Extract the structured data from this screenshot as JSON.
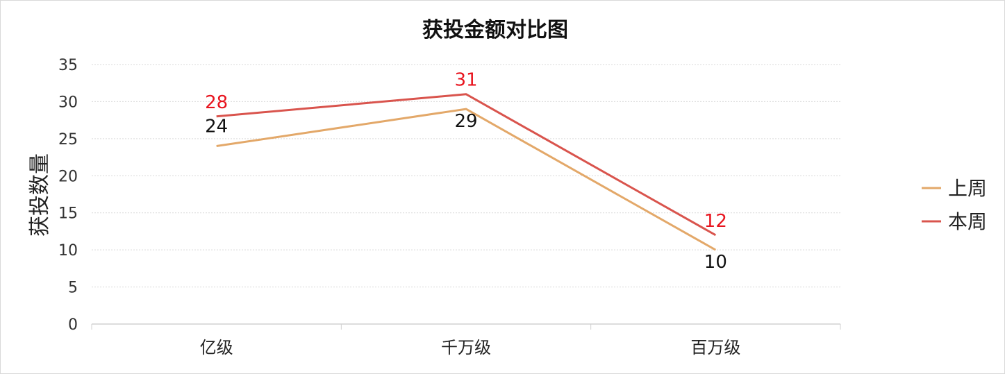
{
  "chart_data": {
    "type": "line",
    "title": "获投金额对比图",
    "xlabel": "",
    "ylabel": "获投数量",
    "categories": [
      "亿级",
      "千万级",
      "百万级"
    ],
    "ylim": [
      0,
      35
    ],
    "yticks": [
      0,
      5,
      10,
      15,
      20,
      25,
      30,
      35
    ],
    "grid": true,
    "legend": "right",
    "series": [
      {
        "name": "上周",
        "values": [
          24,
          29,
          10
        ],
        "color": "#E3A869",
        "label_color": "#111111"
      },
      {
        "name": "本周",
        "values": [
          28,
          31,
          12
        ],
        "color": "#D9544D",
        "label_color": "#E8141E"
      }
    ]
  }
}
